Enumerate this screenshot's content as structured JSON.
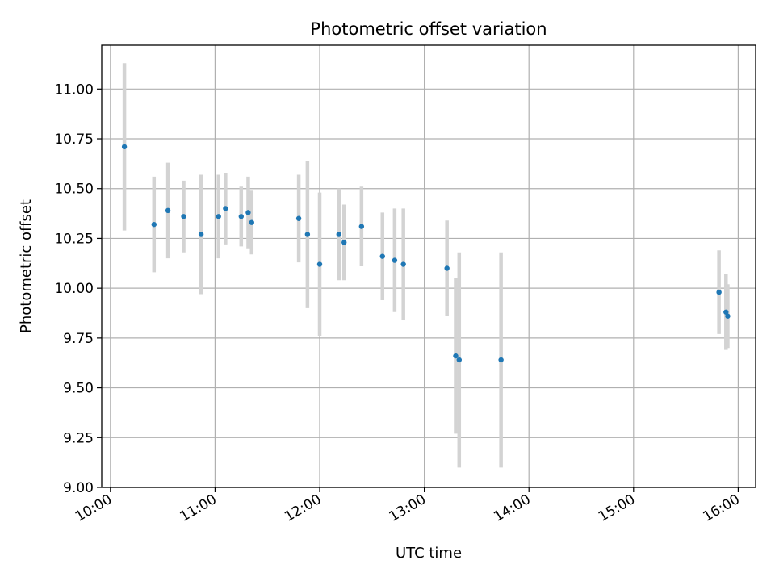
{
  "chart_data": {
    "type": "scatter",
    "title": "Photometric offset variation",
    "xlabel": "UTC time",
    "ylabel": "Photometric offset",
    "xlim": [
      "09:55",
      "16:10"
    ],
    "ylim": [
      9.0,
      11.22
    ],
    "x_ticks": [
      "10:00",
      "11:00",
      "12:00",
      "13:00",
      "14:00",
      "15:00",
      "16:00"
    ],
    "y_ticks": [
      "9.00",
      "9.25",
      "9.50",
      "9.75",
      "10.00",
      "10.25",
      "10.50",
      "10.75",
      "11.00"
    ],
    "grid": true,
    "marker_color": "#1f77b4",
    "errorbar_color": "#d3d3d3",
    "points": [
      {
        "x": "10:08",
        "y": 10.71,
        "err": 0.42
      },
      {
        "x": "10:25",
        "y": 10.32,
        "err": 0.24
      },
      {
        "x": "10:33",
        "y": 10.39,
        "err": 0.24
      },
      {
        "x": "10:42",
        "y": 10.36,
        "err": 0.18
      },
      {
        "x": "10:52",
        "y": 10.27,
        "err": 0.3
      },
      {
        "x": "11:02",
        "y": 10.36,
        "err": 0.21
      },
      {
        "x": "11:06",
        "y": 10.4,
        "err": 0.18
      },
      {
        "x": "11:15",
        "y": 10.36,
        "err": 0.15
      },
      {
        "x": "11:19",
        "y": 10.38,
        "err": 0.18
      },
      {
        "x": "11:21",
        "y": 10.33,
        "err": 0.16
      },
      {
        "x": "11:48",
        "y": 10.35,
        "err": 0.22
      },
      {
        "x": "11:53",
        "y": 10.27,
        "err": 0.37
      },
      {
        "x": "12:00",
        "y": 10.12,
        "err": 0.36
      },
      {
        "x": "12:11",
        "y": 10.27,
        "err": 0.23
      },
      {
        "x": "12:14",
        "y": 10.23,
        "err": 0.19
      },
      {
        "x": "12:24",
        "y": 10.31,
        "err": 0.2
      },
      {
        "x": "12:36",
        "y": 10.16,
        "err": 0.22
      },
      {
        "x": "12:43",
        "y": 10.14,
        "err": 0.26
      },
      {
        "x": "12:48",
        "y": 10.12,
        "err": 0.28
      },
      {
        "x": "13:13",
        "y": 10.1,
        "err": 0.24
      },
      {
        "x": "13:18",
        "y": 9.66,
        "err": 0.39
      },
      {
        "x": "13:20",
        "y": 9.64,
        "err": 0.54
      },
      {
        "x": "13:44",
        "y": 9.64,
        "err": 0.54
      },
      {
        "x": "15:49",
        "y": 9.98,
        "err": 0.21
      },
      {
        "x": "15:53",
        "y": 9.88,
        "err": 0.19
      },
      {
        "x": "15:54",
        "y": 9.86,
        "err": 0.16
      }
    ]
  }
}
